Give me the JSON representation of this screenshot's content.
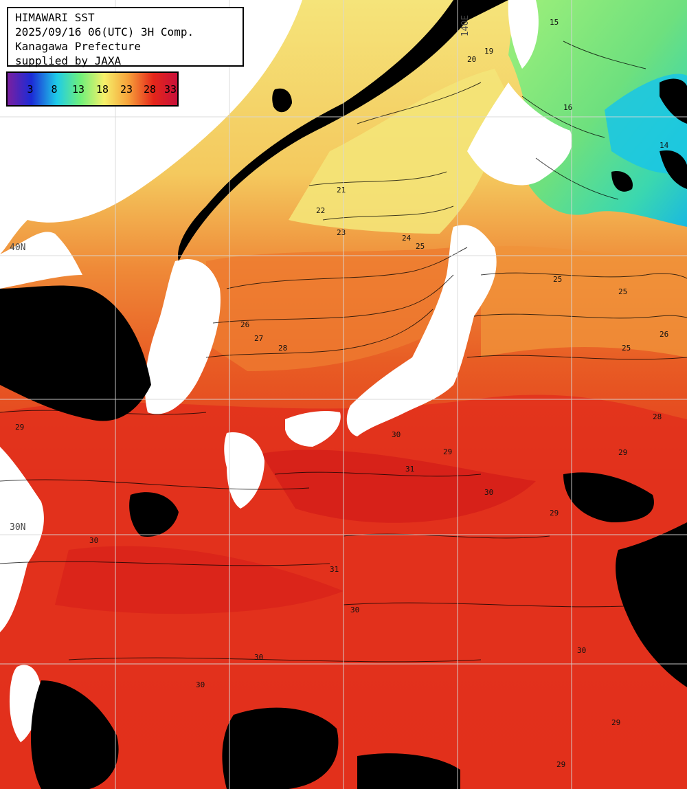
{
  "header": {
    "line1": "HIMAWARI SST",
    "line2": "2025/09/16 06(UTC) 3H Comp.",
    "line3": "Kanagawa Prefecture",
    "line4": "supplied by JAXA"
  },
  "color_scale": {
    "labels": [
      "3",
      "8",
      "13",
      "18",
      "23",
      "28",
      "33"
    ],
    "colors": [
      "#7a1fa0",
      "#1c2bd6",
      "#1ecbe8",
      "#6ff07a",
      "#f6f06a",
      "#f7a23a",
      "#e5261a",
      "#c8103a"
    ]
  },
  "graticule": {
    "lat_labels": [
      "40N",
      "30N"
    ],
    "lon_labels": [
      "140E"
    ]
  },
  "contour_labels": [
    "19",
    "20",
    "21",
    "22",
    "23",
    "24",
    "25",
    "26",
    "27",
    "28",
    "29",
    "30",
    "31",
    "16",
    "14",
    "15"
  ],
  "colors": {
    "land": "#ffffff",
    "cloud": "#000000",
    "grid": "#d8d8d8",
    "warm": "#e33a1c",
    "hot": "#d61e1e"
  }
}
